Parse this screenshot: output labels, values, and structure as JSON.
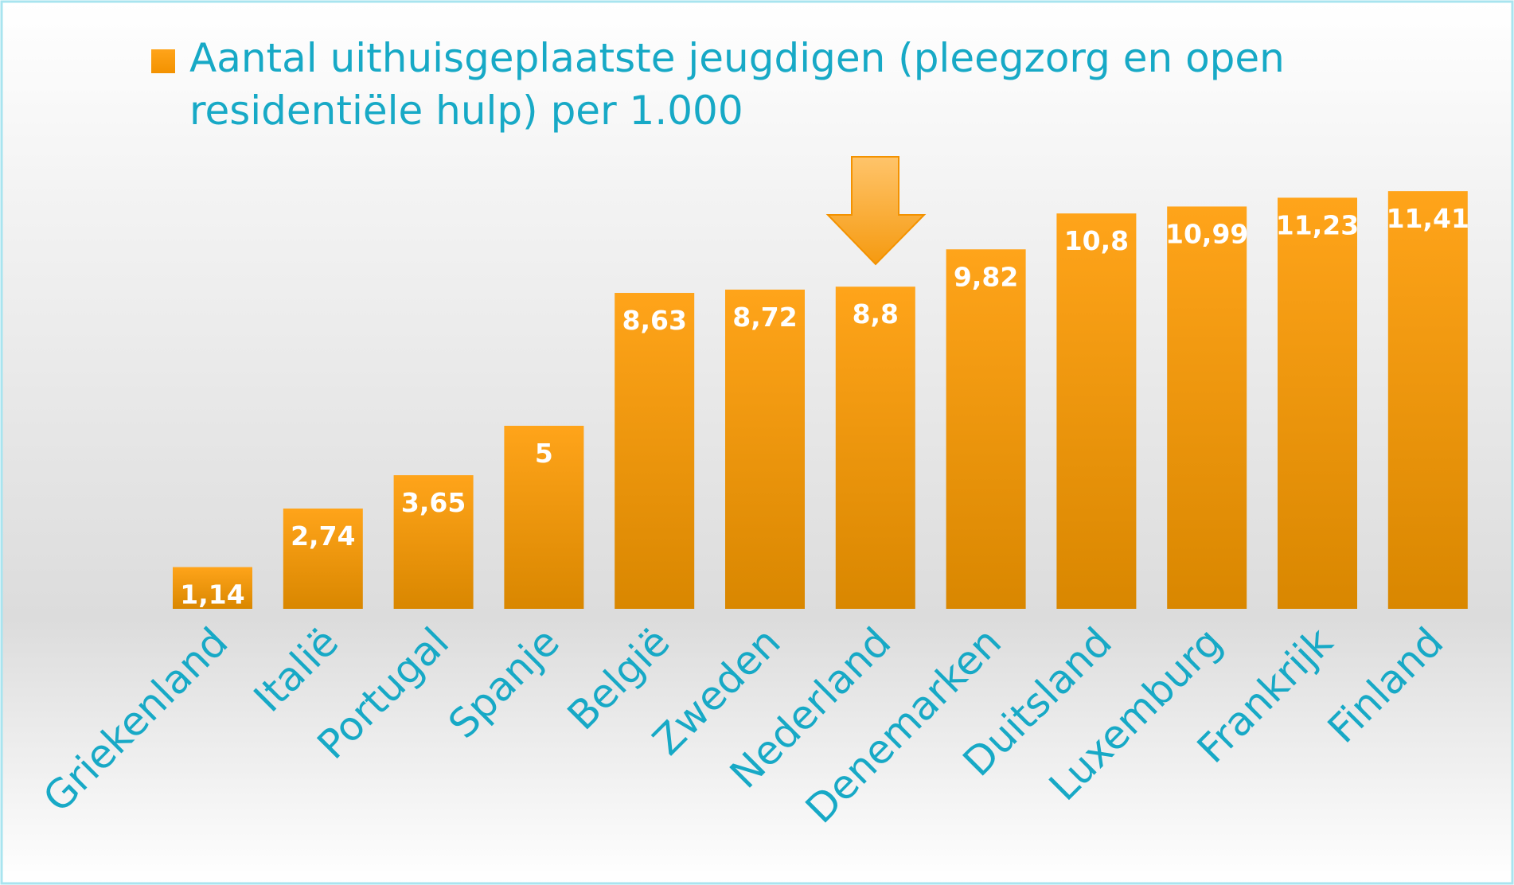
{
  "chart_data": {
    "type": "bar",
    "categories": [
      "Griekenland",
      "Italië",
      "Portugal",
      "Spanje",
      "België",
      "Zweden",
      "Nederland",
      "Denemarken",
      "Duitsland",
      "Luxemburg",
      "Frankrijk",
      "Finland"
    ],
    "series": [
      {
        "name": "Aantal uithuisgeplaatste jeugdigen (pleegzorg en open residentiële hulp) per 1.000",
        "color": "#f39200",
        "values": [
          1.14,
          2.74,
          3.65,
          5,
          8.63,
          8.72,
          8.8,
          9.82,
          10.8,
          10.99,
          11.23,
          11.41
        ],
        "value_labels": [
          "1,14",
          "2,74",
          "3,65",
          "5",
          "8,63",
          "8,72",
          "8,8",
          "9,82",
          "10,8",
          "10,99",
          "11,23",
          "11,41"
        ]
      }
    ]
  }
}
